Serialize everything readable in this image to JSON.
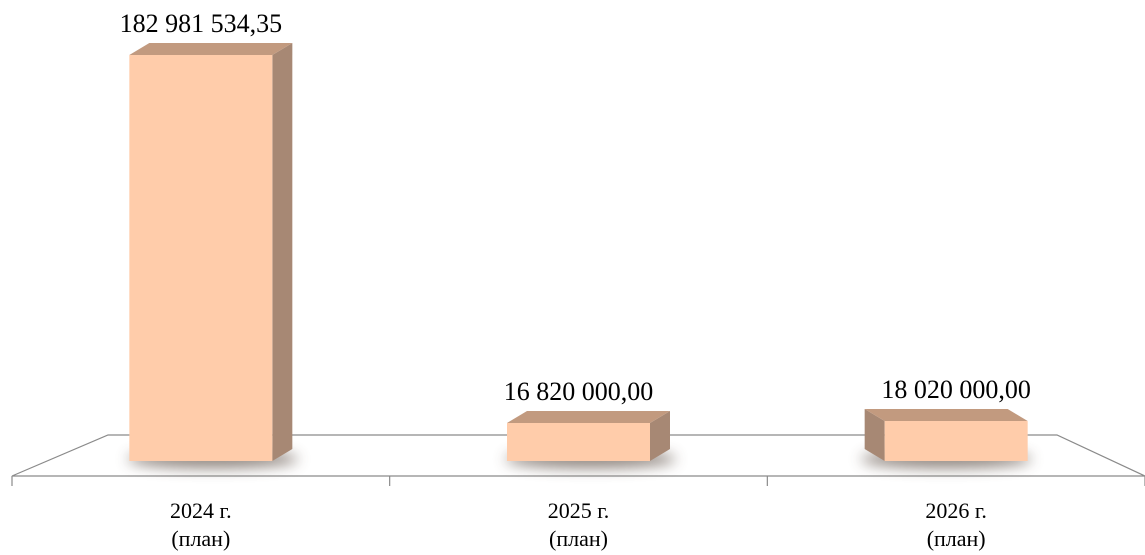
{
  "chart_data": {
    "type": "bar",
    "title": "",
    "xlabel": "",
    "ylabel": "",
    "categories": [
      [
        "2024 г.",
        "(план)"
      ],
      [
        "2025 г.",
        "(план)"
      ],
      [
        "2026 г.",
        "(план)"
      ]
    ],
    "values": [
      182981534.35,
      16820000.0,
      18020000.0
    ],
    "data_labels": [
      "182 981 534,35",
      "16 820 000,00",
      "18 020 000,00"
    ],
    "ylim": [
      0,
      182981534.35
    ],
    "grid": false,
    "legend": "none",
    "style": "3d-column",
    "colors": {
      "bar_front": "#FFCCAA",
      "bar_side": "#A78874",
      "bar_top": "#C29A7F",
      "bar_shadow": "#7A6E66",
      "floor_stroke": "#8A8A8A",
      "text": "#000000"
    }
  }
}
